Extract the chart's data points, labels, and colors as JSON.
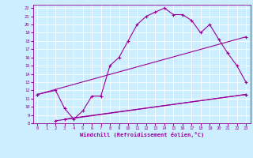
{
  "xlabel": "Windchill (Refroidissement éolien,°C)",
  "bg_color": "#cceeff",
  "grid_color": "#ffffff",
  "line_color": "#990099",
  "xlim": [
    -0.5,
    23.5
  ],
  "ylim": [
    8,
    22.4
  ],
  "xticks": [
    0,
    1,
    2,
    3,
    4,
    5,
    6,
    7,
    8,
    9,
    10,
    11,
    12,
    13,
    14,
    15,
    16,
    17,
    18,
    19,
    20,
    21,
    22,
    23
  ],
  "yticks": [
    8,
    9,
    10,
    11,
    12,
    13,
    14,
    15,
    16,
    17,
    18,
    19,
    20,
    21,
    22
  ],
  "line1_x": [
    0,
    2,
    3,
    4,
    5,
    6,
    7,
    8,
    9,
    10,
    11,
    12,
    13,
    14,
    15,
    16,
    17,
    18,
    19,
    20,
    21,
    22,
    23
  ],
  "line1_y": [
    11.5,
    12.0,
    9.8,
    8.5,
    9.5,
    11.3,
    11.3,
    15.0,
    16.0,
    18.0,
    20.0,
    21.0,
    21.5,
    22.0,
    21.2,
    21.2,
    20.5,
    19.0,
    20.0,
    18.2,
    16.5,
    15.0,
    13.0
  ],
  "line2_x": [
    0,
    23
  ],
  "line2_y": [
    11.5,
    18.5
  ],
  "line3_x": [
    3,
    23
  ],
  "line3_y": [
    8.5,
    11.5
  ],
  "line4_x": [
    2,
    23
  ],
  "line4_y": [
    8.3,
    11.5
  ],
  "marker": "+"
}
